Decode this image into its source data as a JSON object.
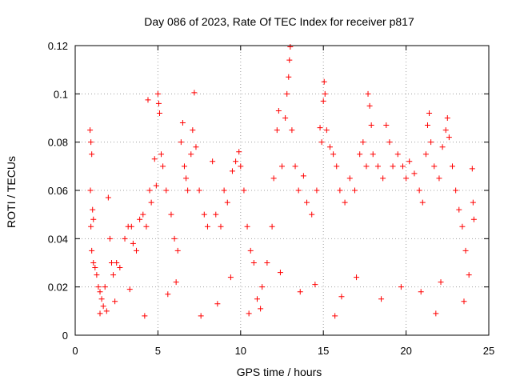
{
  "chart_data": {
    "type": "scatter",
    "title": "Day 086 of 2023, Rate Of TEC Index for receiver p817",
    "xlabel": "GPS time / hours",
    "ylabel": "ROTI / TECUs",
    "xlim": [
      0,
      25
    ],
    "ylim": [
      0,
      0.12
    ],
    "xticks": [
      0,
      5,
      10,
      15,
      20,
      25
    ],
    "yticks": [
      0,
      0.02,
      0.04,
      0.06,
      0.08,
      0.1,
      0.12
    ],
    "xtick_labels": [
      "0",
      "5",
      "10",
      "15",
      "20",
      "25"
    ],
    "ytick_labels": [
      "0",
      "0.02",
      "0.04",
      "0.06",
      "0.08",
      "0.1",
      "0.12"
    ],
    "grid": true,
    "marker": "+",
    "color": "#ff0000",
    "series": [
      {
        "points": [
          [
            0.9,
            0.085
          ],
          [
            0.95,
            0.08
          ],
          [
            1.0,
            0.075
          ],
          [
            0.92,
            0.06
          ],
          [
            1.05,
            0.052
          ],
          [
            1.1,
            0.048
          ],
          [
            0.95,
            0.045
          ],
          [
            1.0,
            0.035
          ],
          [
            1.1,
            0.03
          ],
          [
            1.2,
            0.028
          ],
          [
            1.3,
            0.025
          ],
          [
            1.4,
            0.02
          ],
          [
            1.5,
            0.018
          ],
          [
            1.6,
            0.015
          ],
          [
            1.7,
            0.012
          ],
          [
            1.8,
            0.02
          ],
          [
            1.9,
            0.01
          ],
          [
            2.0,
            0.057
          ],
          [
            2.1,
            0.04
          ],
          [
            2.2,
            0.03
          ],
          [
            2.3,
            0.025
          ],
          [
            2.5,
            0.03
          ],
          [
            2.7,
            0.028
          ],
          [
            3.0,
            0.04
          ],
          [
            3.2,
            0.045
          ],
          [
            3.4,
            0.045
          ],
          [
            3.5,
            0.038
          ],
          [
            3.7,
            0.035
          ],
          [
            3.9,
            0.048
          ],
          [
            4.1,
            0.05
          ],
          [
            4.3,
            0.045
          ],
          [
            4.4,
            0.0975
          ],
          [
            4.5,
            0.06
          ],
          [
            4.6,
            0.055
          ],
          [
            4.8,
            0.073
          ],
          [
            4.9,
            0.062
          ],
          [
            5.0,
            0.1
          ],
          [
            5.05,
            0.096
          ],
          [
            5.1,
            0.092
          ],
          [
            5.2,
            0.075
          ],
          [
            5.3,
            0.07
          ],
          [
            5.5,
            0.06
          ],
          [
            5.8,
            0.05
          ],
          [
            6.0,
            0.04
          ],
          [
            6.2,
            0.035
          ],
          [
            6.4,
            0.08
          ],
          [
            6.5,
            0.088
          ],
          [
            6.6,
            0.07
          ],
          [
            6.7,
            0.065
          ],
          [
            6.8,
            0.06
          ],
          [
            7.0,
            0.075
          ],
          [
            7.1,
            0.085
          ],
          [
            7.2,
            0.1005
          ],
          [
            7.3,
            0.078
          ],
          [
            7.5,
            0.06
          ],
          [
            7.8,
            0.05
          ],
          [
            8.0,
            0.045
          ],
          [
            8.3,
            0.072
          ],
          [
            8.5,
            0.05
          ],
          [
            8.8,
            0.045
          ],
          [
            9.0,
            0.06
          ],
          [
            9.2,
            0.055
          ],
          [
            9.5,
            0.068
          ],
          [
            9.7,
            0.072
          ],
          [
            9.9,
            0.076
          ],
          [
            10.0,
            0.07
          ],
          [
            10.2,
            0.06
          ],
          [
            10.4,
            0.045
          ],
          [
            10.6,
            0.035
          ],
          [
            10.8,
            0.03
          ],
          [
            11.0,
            0.015
          ],
          [
            11.3,
            0.02
          ],
          [
            11.6,
            0.03
          ],
          [
            11.9,
            0.045
          ],
          [
            12.0,
            0.065
          ],
          [
            12.2,
            0.085
          ],
          [
            12.3,
            0.093
          ],
          [
            12.5,
            0.07
          ],
          [
            12.7,
            0.09
          ],
          [
            12.8,
            0.1
          ],
          [
            12.9,
            0.107
          ],
          [
            12.95,
            0.114
          ],
          [
            13.0,
            0.1195
          ],
          [
            13.1,
            0.085
          ],
          [
            13.3,
            0.07
          ],
          [
            13.5,
            0.06
          ],
          [
            13.8,
            0.066
          ],
          [
            14.0,
            0.055
          ],
          [
            14.3,
            0.05
          ],
          [
            14.6,
            0.06
          ],
          [
            14.8,
            0.086
          ],
          [
            14.9,
            0.08
          ],
          [
            15.0,
            0.097
          ],
          [
            15.05,
            0.105
          ],
          [
            15.1,
            0.1
          ],
          [
            15.2,
            0.085
          ],
          [
            15.4,
            0.078
          ],
          [
            15.6,
            0.075
          ],
          [
            15.8,
            0.07
          ],
          [
            16.0,
            0.06
          ],
          [
            16.3,
            0.055
          ],
          [
            16.6,
            0.065
          ],
          [
            16.9,
            0.06
          ],
          [
            17.2,
            0.075
          ],
          [
            17.4,
            0.08
          ],
          [
            17.6,
            0.07
          ],
          [
            17.7,
            0.1
          ],
          [
            17.8,
            0.095
          ],
          [
            17.9,
            0.087
          ],
          [
            18.0,
            0.075
          ],
          [
            18.3,
            0.07
          ],
          [
            18.6,
            0.065
          ],
          [
            18.8,
            0.087
          ],
          [
            19.0,
            0.08
          ],
          [
            19.2,
            0.07
          ],
          [
            19.5,
            0.075
          ],
          [
            19.8,
            0.07
          ],
          [
            20.0,
            0.065
          ],
          [
            20.2,
            0.072
          ],
          [
            20.5,
            0.067
          ],
          [
            20.8,
            0.06
          ],
          [
            21.0,
            0.055
          ],
          [
            21.2,
            0.075
          ],
          [
            21.3,
            0.087
          ],
          [
            21.4,
            0.092
          ],
          [
            21.5,
            0.08
          ],
          [
            21.7,
            0.07
          ],
          [
            22.0,
            0.065
          ],
          [
            22.2,
            0.078
          ],
          [
            22.4,
            0.085
          ],
          [
            22.5,
            0.09
          ],
          [
            22.6,
            0.082
          ],
          [
            22.8,
            0.07
          ],
          [
            23.0,
            0.06
          ],
          [
            23.2,
            0.052
          ],
          [
            23.4,
            0.045
          ],
          [
            23.6,
            0.035
          ],
          [
            23.8,
            0.025
          ],
          [
            24.0,
            0.069
          ],
          [
            24.05,
            0.055
          ],
          [
            24.1,
            0.048
          ],
          [
            2.4,
            0.014
          ],
          [
            3.3,
            0.019
          ],
          [
            5.6,
            0.017
          ],
          [
            6.1,
            0.022
          ],
          [
            8.6,
            0.013
          ],
          [
            9.4,
            0.024
          ],
          [
            11.2,
            0.011
          ],
          [
            12.4,
            0.026
          ],
          [
            13.6,
            0.018
          ],
          [
            14.5,
            0.021
          ],
          [
            16.1,
            0.016
          ],
          [
            17.0,
            0.024
          ],
          [
            18.5,
            0.015
          ],
          [
            19.7,
            0.02
          ],
          [
            20.9,
            0.018
          ],
          [
            22.1,
            0.022
          ],
          [
            23.5,
            0.014
          ],
          [
            1.5,
            0.009
          ],
          [
            4.2,
            0.008
          ],
          [
            7.6,
            0.008
          ],
          [
            10.5,
            0.009
          ],
          [
            15.7,
            0.008
          ],
          [
            21.8,
            0.009
          ]
        ]
      }
    ]
  }
}
